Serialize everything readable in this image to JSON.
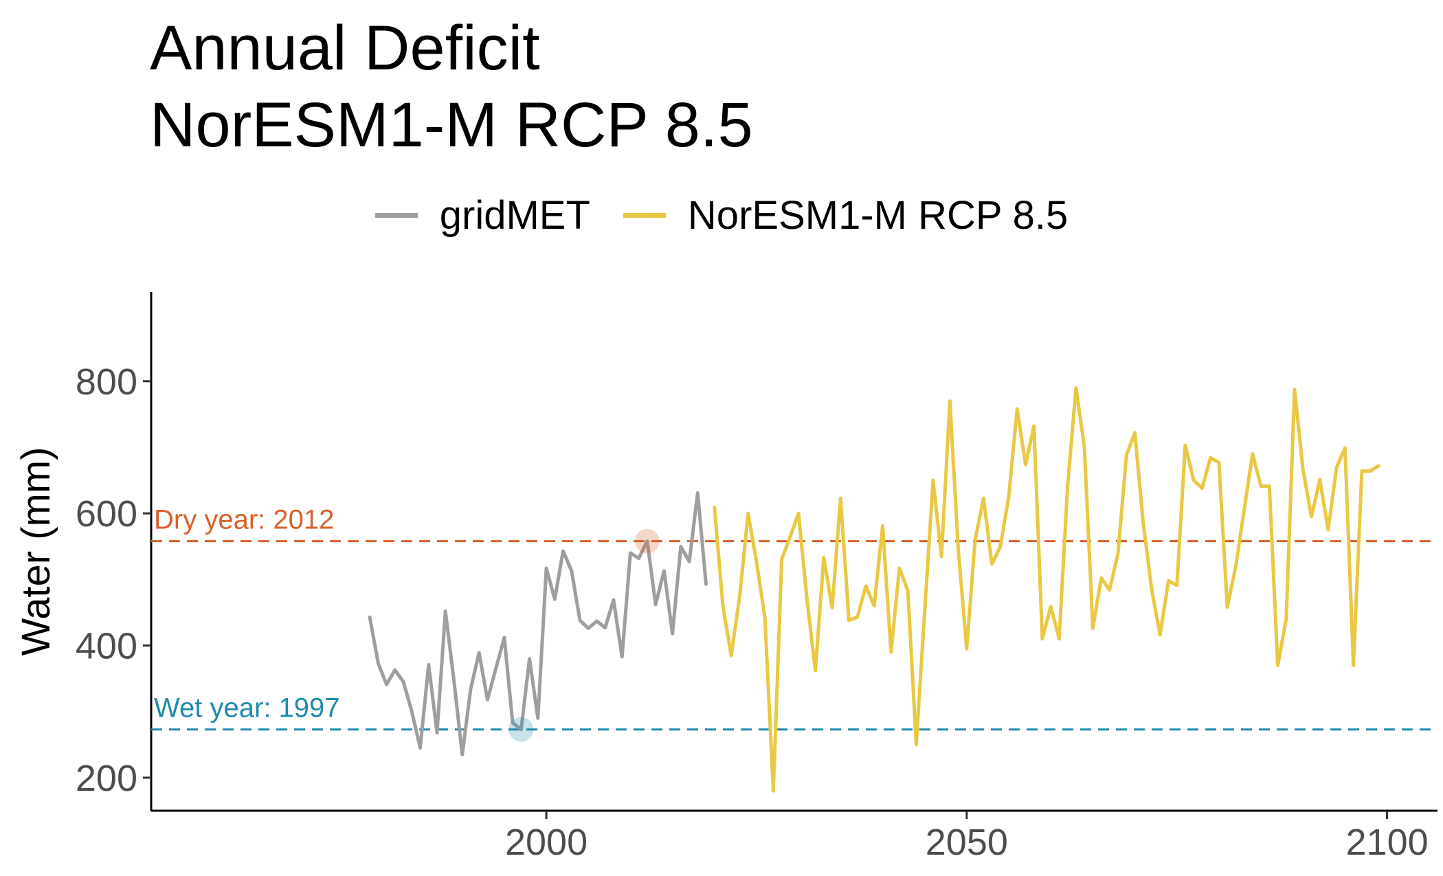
{
  "chart_data": {
    "type": "line",
    "title": [
      "Annual Deficit",
      "NorESM1-M RCP 8.5"
    ],
    "ylabel": "Water (mm)",
    "xlabel": "",
    "xlim": [
      1953,
      2106
    ],
    "ylim": [
      150,
      935
    ],
    "x_ticks": [
      2000,
      2050,
      2100
    ],
    "y_ticks": [
      200,
      400,
      600,
      800
    ],
    "grid": false,
    "legend_position": "top",
    "series": [
      {
        "name": "gridMET",
        "color": "#9e9e9e",
        "x": [
          1979,
          1980,
          1981,
          1982,
          1983,
          1984,
          1985,
          1986,
          1987,
          1988,
          1989,
          1990,
          1991,
          1992,
          1993,
          1994,
          1995,
          1996,
          1997,
          1998,
          1999,
          2000,
          2001,
          2002,
          2003,
          2004,
          2005,
          2006,
          2007,
          2008,
          2009,
          2010,
          2011,
          2012,
          2013,
          2014,
          2015,
          2016,
          2017,
          2018,
          2019
        ],
        "y": [
          443,
          373,
          341,
          363,
          345,
          300,
          245,
          371,
          268,
          452,
          348,
          235,
          334,
          389,
          318,
          365,
          412,
          283,
          273,
          380,
          290,
          517,
          470,
          543,
          513,
          438,
          426,
          437,
          427,
          469,
          383,
          540,
          532,
          558,
          462,
          513,
          418,
          550,
          527,
          631,
          493
        ]
      },
      {
        "name": "NorESM1-M RCP 8.5",
        "color": "#e9c843",
        "x": [
          2020,
          2021,
          2022,
          2023,
          2024,
          2025,
          2026,
          2027,
          2028,
          2029,
          2030,
          2031,
          2032,
          2033,
          2034,
          2035,
          2036,
          2037,
          2038,
          2039,
          2040,
          2041,
          2042,
          2043,
          2044,
          2045,
          2046,
          2047,
          2048,
          2049,
          2050,
          2051,
          2052,
          2053,
          2054,
          2055,
          2056,
          2057,
          2058,
          2059,
          2060,
          2061,
          2062,
          2063,
          2064,
          2065,
          2066,
          2067,
          2068,
          2069,
          2070,
          2071,
          2072,
          2073,
          2074,
          2075,
          2076,
          2077,
          2078,
          2079,
          2080,
          2081,
          2082,
          2083,
          2084,
          2085,
          2086,
          2087,
          2088,
          2089,
          2090,
          2091,
          2092,
          2093,
          2094,
          2095,
          2096,
          2097,
          2098,
          2099
        ],
        "y": [
          609,
          460,
          385,
          475,
          600,
          527,
          442,
          180,
          530,
          565,
          600,
          470,
          362,
          533,
          457,
          623,
          438,
          443,
          490,
          460,
          581,
          390,
          517,
          483,
          250,
          450,
          650,
          535,
          770,
          545,
          395,
          560,
          623,
          523,
          550,
          625,
          758,
          674,
          732,
          410,
          459,
          410,
          640,
          790,
          700,
          426,
          502,
          484,
          540,
          688,
          722,
          585,
          485,
          416,
          498,
          491,
          703,
          650,
          638,
          684,
          677,
          458,
          520,
          605,
          690,
          641,
          641,
          370,
          440,
          787,
          667,
          595,
          651,
          575,
          670,
          699,
          370,
          664,
          664,
          672
        ]
      }
    ],
    "reference_lines": [
      {
        "label": "Dry year: 2012",
        "y": 558,
        "year": 2012,
        "color": "#d9602a"
      },
      {
        "label": "Wet year: 1997",
        "y": 273,
        "year": 1997,
        "color": "#1e8aac"
      }
    ]
  }
}
